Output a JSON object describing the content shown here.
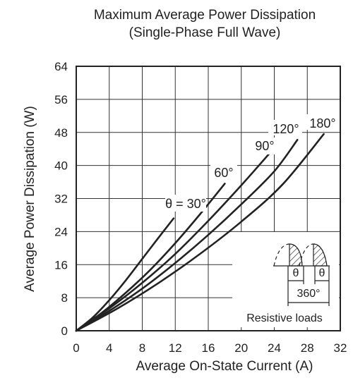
{
  "chart_data": {
    "type": "line",
    "title": "Maximum Average Power Dissipation",
    "subtitle": "(Single-Phase Full Wave)",
    "xlabel": "Average On-State Current  (A)",
    "ylabel": "Average Power Dissipation  (W)",
    "xlim": [
      0,
      32
    ],
    "ylim": [
      0,
      64
    ],
    "xticks": [
      "0",
      "4",
      "8",
      "12",
      "16",
      "20",
      "24",
      "28",
      "32"
    ],
    "yticks": [
      "0",
      "8",
      "16",
      "24",
      "32",
      "40",
      "48",
      "56",
      "64"
    ],
    "grid": true,
    "series": [
      {
        "name": "θ = 30°",
        "x": [
          0,
          2,
          4,
          6,
          8,
          10,
          11.8
        ],
        "y": [
          0,
          3.2,
          7.4,
          12.2,
          17.4,
          22.6,
          27.2
        ]
      },
      {
        "name": "60°",
        "x": [
          0,
          3,
          6,
          9,
          12,
          15,
          18
        ],
        "y": [
          0,
          4.2,
          9.2,
          14.8,
          21.2,
          28.2,
          35.6
        ]
      },
      {
        "name": "90°",
        "x": [
          0,
          4,
          8,
          12,
          16,
          20,
          23.8
        ],
        "y": [
          0,
          5.4,
          11.6,
          18.6,
          26.6,
          35.2,
          43.8
        ]
      },
      {
        "name": "120°",
        "x": [
          0,
          4,
          8,
          12,
          16,
          20,
          24,
          26.8
        ],
        "y": [
          0,
          4.8,
          10.2,
          16.4,
          23.2,
          30.6,
          38.6,
          46.2
        ]
      },
      {
        "name": "180°",
        "x": [
          0,
          5,
          10,
          15,
          20,
          25,
          30
        ],
        "y": [
          0,
          5.4,
          11.6,
          18.6,
          26.4,
          35.4,
          47.6
        ]
      }
    ],
    "inset": {
      "theta_label": "θ",
      "period_label": "360°",
      "load_label": "Resistive loads"
    }
  }
}
